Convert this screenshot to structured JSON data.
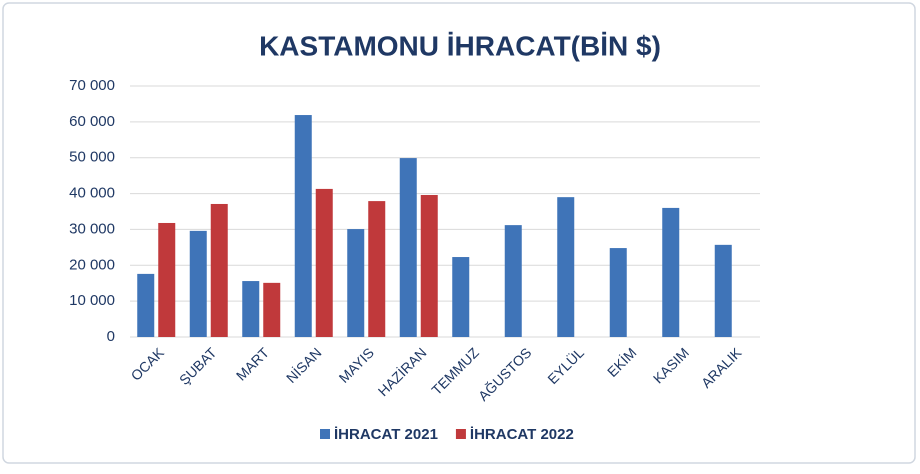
{
  "chart_data": {
    "type": "bar",
    "title": "KASTAMONU İHRACAT(BİN $)",
    "categories": [
      "OCAK",
      "ŞUBAT",
      "MART",
      "NİSAN",
      "MAYIS",
      "HAZİRAN",
      "TEMMUZ",
      "AĞUSTOS",
      "EYLÜL",
      "EKİM",
      "KASIM",
      "ARALIK"
    ],
    "series": [
      {
        "name": "İHRACAT 2021",
        "color": "#3f74b8",
        "values": [
          17600,
          29600,
          15600,
          61900,
          30100,
          49900,
          22300,
          31200,
          39000,
          24800,
          36000,
          25700
        ]
      },
      {
        "name": "İHRACAT 2022",
        "color": "#c0393b",
        "values": [
          31800,
          37100,
          15100,
          41300,
          37900,
          39600,
          null,
          null,
          null,
          null,
          null,
          null
        ]
      }
    ],
    "ylim": [
      0,
      70000
    ],
    "yticks": [
      0,
      {
        "value": 10000,
        "label": "10 000"
      },
      {
        "value": 20000,
        "label": "20 000"
      },
      {
        "value": 30000,
        "label": "30 000"
      },
      {
        "value": 40000,
        "label": "40 000"
      },
      {
        "value": 50000,
        "label": "50 000"
      },
      {
        "value": 60000,
        "label": "60 000"
      },
      {
        "value": 70000,
        "label": "70 000"
      }
    ],
    "grid": true
  }
}
